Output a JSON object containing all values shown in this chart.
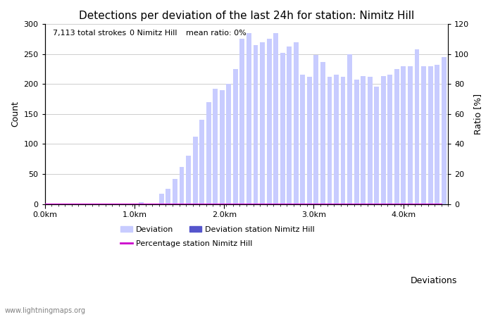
{
  "title": "Detections per deviation of the last 24h for station: Nimitz Hill",
  "subtitle_left": "7,113 total strokes",
  "subtitle_mid": "0 Nimitz Hill",
  "subtitle_right": "mean ratio: 0%",
  "xlabel": "Deviations",
  "ylabel_left": "Count",
  "ylabel_right": "Ratio [%]",
  "watermark": "www.lightningmaps.org",
  "bar_values": [
    1,
    0,
    0,
    0,
    0,
    0,
    0,
    0,
    0,
    0,
    0,
    0,
    0,
    0,
    3,
    0,
    0,
    17,
    25,
    42,
    62,
    80,
    112,
    140,
    170,
    192,
    190,
    200,
    225,
    275,
    285,
    265,
    270,
    275,
    285,
    252,
    262,
    270,
    215,
    212,
    248,
    236,
    212,
    216,
    212,
    250,
    207,
    213,
    212,
    195,
    213,
    215,
    225,
    229,
    230,
    258,
    229,
    230,
    232,
    245
  ],
  "station_bar_values": [
    0,
    0,
    0,
    0,
    0,
    0,
    0,
    0,
    0,
    0,
    0,
    0,
    0,
    0,
    0,
    0,
    0,
    0,
    0,
    0,
    0,
    0,
    0,
    0,
    0,
    0,
    0,
    0,
    0,
    0,
    0,
    0,
    0,
    0,
    0,
    0,
    0,
    0,
    0,
    0,
    0,
    0,
    0,
    0,
    0,
    0,
    0,
    0,
    0,
    0,
    0,
    0,
    0,
    0,
    0,
    0,
    0,
    0,
    0,
    0
  ],
  "percentage_values": [
    0,
    0,
    0,
    0,
    0,
    0,
    0,
    0,
    0,
    0,
    0,
    0,
    0,
    0,
    0,
    0,
    0,
    0,
    0,
    0,
    0,
    0,
    0,
    0,
    0,
    0,
    0,
    0,
    0,
    0,
    0,
    0,
    0,
    0,
    0,
    0,
    0,
    0,
    0,
    0,
    0,
    0,
    0,
    0,
    0,
    0,
    0,
    0,
    0,
    0,
    0,
    0,
    0,
    0,
    0,
    0,
    0,
    0,
    0,
    0
  ],
  "n_bars": 60,
  "km_per_bar": 0.075,
  "x_tick_labels": [
    "0.0km",
    "1.0km",
    "2.0km",
    "3.0km",
    "4.0km"
  ],
  "x_tick_positions_km": [
    0.0,
    1.0,
    2.0,
    3.0,
    4.0
  ],
  "ylim_left": [
    0,
    300
  ],
  "ylim_right": [
    0,
    120
  ],
  "yticks_left": [
    0,
    50,
    100,
    150,
    200,
    250,
    300
  ],
  "yticks_right": [
    0,
    20,
    40,
    60,
    80,
    100,
    120
  ],
  "bar_color_deviation": "#c8ccff",
  "bar_color_station": "#5555cc",
  "line_color_percentage": "#cc00cc",
  "title_fontsize": 11,
  "axis_label_fontsize": 9,
  "tick_fontsize": 8,
  "legend_fontsize": 8,
  "subtitle_fontsize": 8,
  "background_color": "#ffffff",
  "grid_color": "#bbbbbb"
}
